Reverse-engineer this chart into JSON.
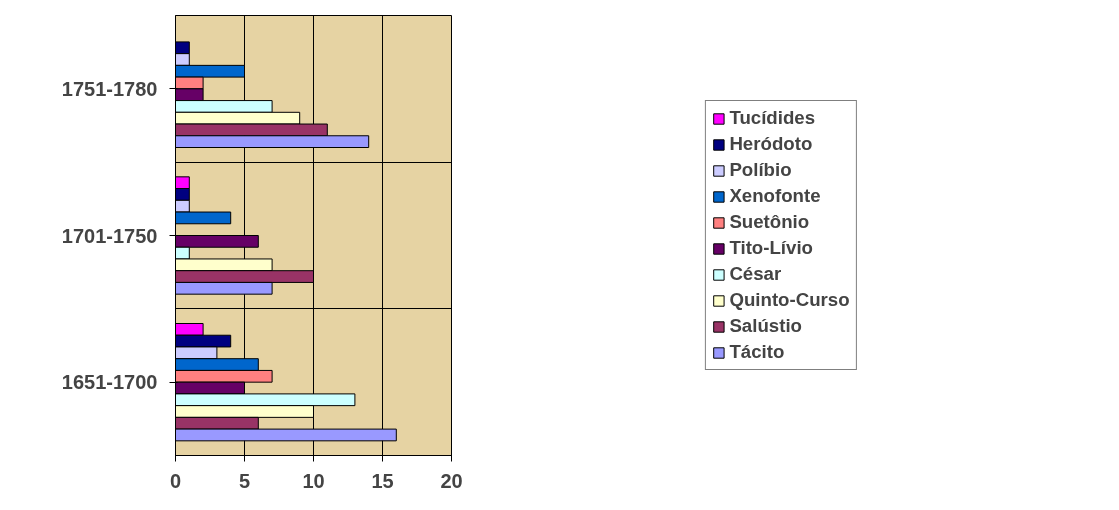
{
  "chart_data": {
    "type": "bar",
    "orientation": "horizontal",
    "categories": [
      "1751-1780",
      "1701-1750",
      "1651-1700"
    ],
    "series": [
      {
        "name": "Tucídides",
        "color": "#ff00ff",
        "values": [
          null,
          1,
          2
        ]
      },
      {
        "name": "Heródoto",
        "color": "#000080",
        "values": [
          1,
          1,
          4
        ]
      },
      {
        "name": "Políbio",
        "color": "#ccccff",
        "values": [
          1,
          1,
          3
        ]
      },
      {
        "name": "Xenofonte",
        "color": "#0066cc",
        "values": [
          5,
          4,
          6
        ]
      },
      {
        "name": "Suetônio",
        "color": "#ff8080",
        "values": [
          2,
          null,
          7
        ]
      },
      {
        "name": "Tito-Lívio",
        "color": "#660066",
        "values": [
          2,
          6,
          5
        ]
      },
      {
        "name": "César",
        "color": "#ccffff",
        "values": [
          7,
          1,
          13
        ]
      },
      {
        "name": "Quinto-Curso",
        "color": "#ffffcc",
        "values": [
          9,
          7,
          10
        ]
      },
      {
        "name": "Salústio",
        "color": "#993366",
        "values": [
          11,
          10,
          6
        ]
      },
      {
        "name": "Tácito",
        "color": "#9999ff",
        "values": [
          14,
          7,
          16
        ]
      }
    ],
    "xlim": [
      0,
      20
    ],
    "xticks": [
      0,
      5,
      10,
      15,
      20
    ],
    "grid": true,
    "legend": "right"
  }
}
